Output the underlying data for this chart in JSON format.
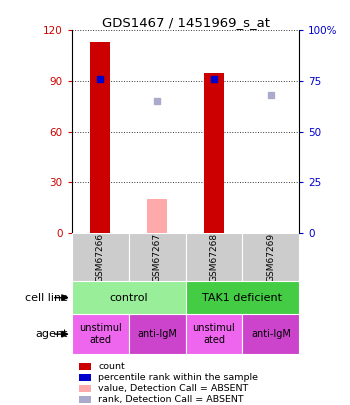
{
  "title": "GDS1467 / 1451969_s_at",
  "samples": [
    "GSM67266",
    "GSM67267",
    "GSM67268",
    "GSM67269"
  ],
  "bar_values": [
    113,
    null,
    95,
    null
  ],
  "bar_absent_values": [
    null,
    20,
    null,
    null
  ],
  "bar_color_present": "#cc0000",
  "bar_color_absent": "#ffaaaa",
  "dot_present": [
    76,
    null,
    76,
    null
  ],
  "dot_absent": [
    null,
    65,
    null,
    68
  ],
  "dot_color_present": "#0000cc",
  "dot_color_absent": "#aaaacc",
  "dot_absent_flags": [
    false,
    true,
    false,
    true
  ],
  "ylim_left": [
    0,
    120
  ],
  "ylim_right": [
    0,
    100
  ],
  "yticks_left": [
    0,
    30,
    60,
    90,
    120
  ],
  "ytick_labels_left": [
    "0",
    "30",
    "60",
    "90",
    "120"
  ],
  "yticks_right": [
    0,
    25,
    50,
    75,
    100
  ],
  "ytick_labels_right": [
    "0",
    "25",
    "50",
    "75",
    "100%"
  ],
  "cell_line_groups": [
    {
      "label": "control",
      "cols": [
        0,
        1
      ],
      "color": "#99ee99"
    },
    {
      "label": "TAK1 deficient",
      "cols": [
        2,
        3
      ],
      "color": "#44cc44"
    }
  ],
  "agent_groups": [
    {
      "label": "unstimul\nated",
      "col": 0,
      "color": "#ee66ee"
    },
    {
      "label": "anti-IgM",
      "col": 1,
      "color": "#cc44cc"
    },
    {
      "label": "unstimul\nated",
      "col": 2,
      "color": "#ee66ee"
    },
    {
      "label": "anti-IgM",
      "col": 3,
      "color": "#cc44cc"
    }
  ],
  "legend_items": [
    {
      "color": "#cc0000",
      "label": "count"
    },
    {
      "color": "#0000cc",
      "label": "percentile rank within the sample"
    },
    {
      "color": "#ffaaaa",
      "label": "value, Detection Call = ABSENT"
    },
    {
      "color": "#aaaacc",
      "label": "rank, Detection Call = ABSENT"
    }
  ],
  "left_axis_color": "#cc0000",
  "right_axis_color": "#0000cc",
  "bar_width": 0.35,
  "sample_bg": "#cccccc",
  "fig_bg": "#ffffff"
}
